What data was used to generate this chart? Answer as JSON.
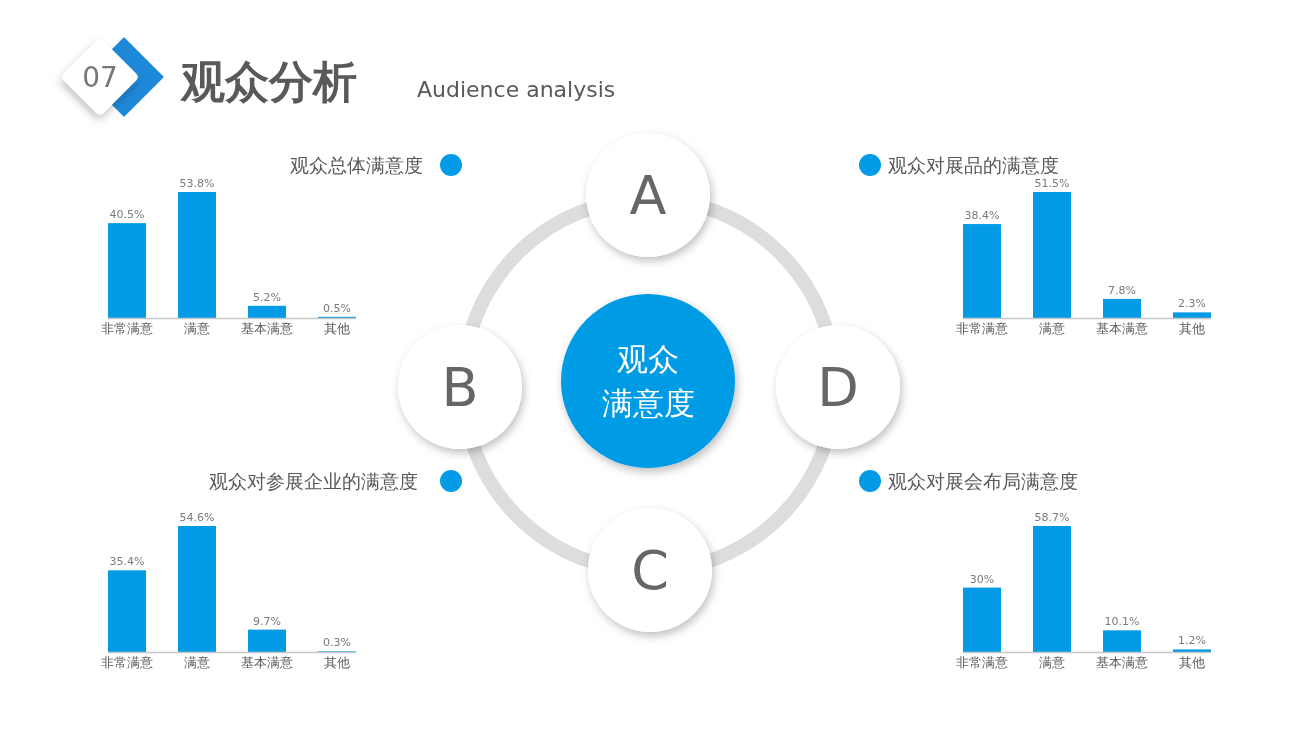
{
  "chart_data": [
    {
      "type": "other",
      "title": "观众分析",
      "subtitle": "Audience analysis",
      "annotations": [
        "07",
        "A",
        "B",
        "C",
        "D",
        "观众满意度"
      ]
    },
    {
      "type": "bar",
      "title": "观众总体满意度",
      "categories": [
        "非常满意",
        "满意",
        "基本满意",
        "其他"
      ],
      "values": [
        40.5,
        53.8,
        5.2,
        0.5
      ],
      "value_labels": [
        "40.5%",
        "53.8%",
        "5.2%",
        "0.5%"
      ],
      "color": "#039be5"
    },
    {
      "type": "bar",
      "title": "观众对展品的满意度",
      "categories": [
        "非常满意",
        "满意",
        "基本满意",
        "其他"
      ],
      "values": [
        38.4,
        51.5,
        7.8,
        2.3
      ],
      "value_labels": [
        "38.4%",
        "51.5%",
        "7.8%",
        "2.3%"
      ],
      "color": "#039be5"
    },
    {
      "type": "bar",
      "title": "观众对参展企业的满意度",
      "categories": [
        "非常满意",
        "满意",
        "基本满意",
        "其他"
      ],
      "values": [
        35.4,
        54.6,
        9.7,
        0.3
      ],
      "value_labels": [
        "35.4%",
        "54.6%",
        "9.7%",
        "0.3%"
      ],
      "color": "#039be5"
    },
    {
      "type": "bar",
      "title": "观众对展会布局满意度",
      "categories": [
        "非常满意",
        "满意",
        "基本满意",
        "其他"
      ],
      "values": [
        30,
        58.7,
        10.1,
        1.2
      ],
      "value_labels": [
        "30%",
        "58.7%",
        "10.1%",
        "1.2%"
      ],
      "color": "#039be5"
    }
  ]
}
